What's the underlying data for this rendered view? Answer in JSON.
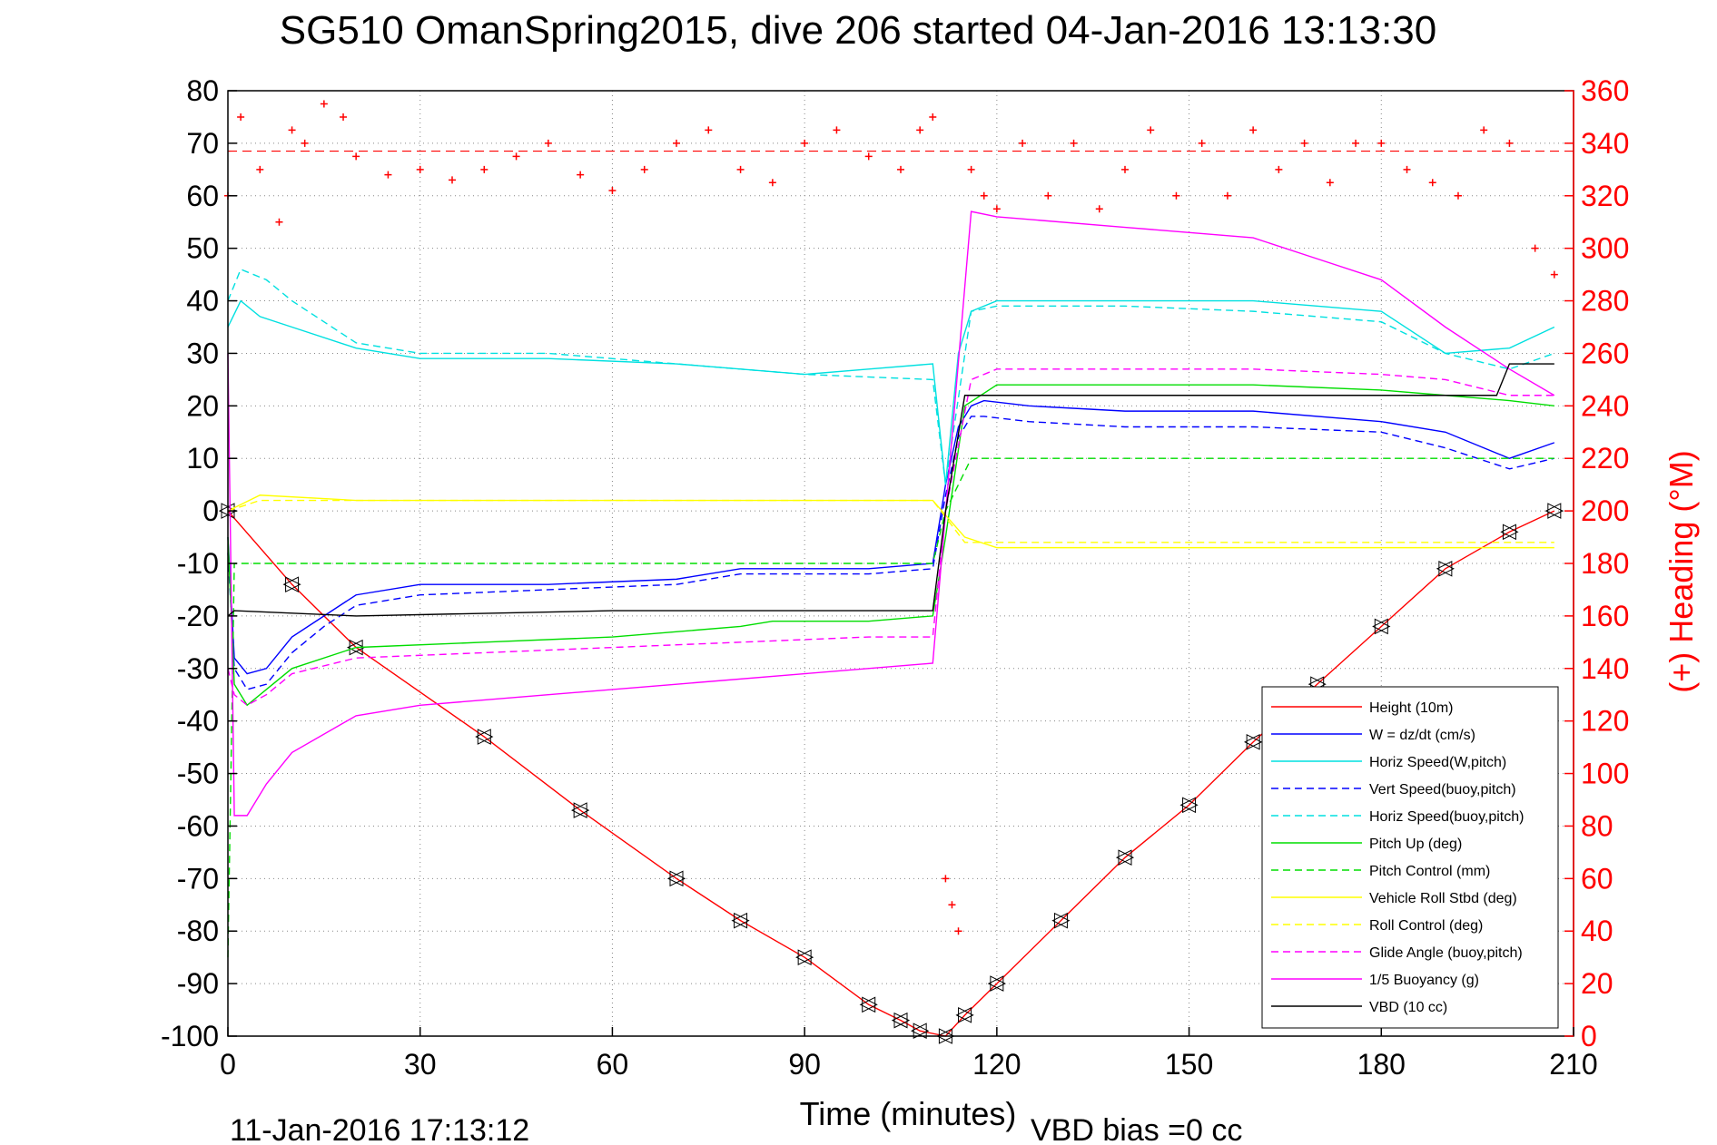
{
  "chart_data": {
    "type": "line",
    "title": "SG510 OmanSpring2015, dive 206 started 04-Jan-2016 13:13:30",
    "xlabel": "Time (minutes)",
    "ylabel_right": "(+) Heading (°M)",
    "footer_left": "11-Jan-2016 17:13:12",
    "footer_right": "VBD bias =0 cc",
    "xlim": [
      0,
      210
    ],
    "ylim": [
      -100,
      80
    ],
    "y2lim": [
      0,
      360
    ],
    "x_ticks": [
      0,
      30,
      60,
      90,
      120,
      150,
      180,
      210
    ],
    "x_tick_labels": [
      "0",
      "30",
      "60",
      "90",
      "120",
      "150",
      "180",
      "210"
    ],
    "y_ticks": [
      80,
      70,
      60,
      50,
      40,
      30,
      20,
      10,
      0,
      -10,
      -20,
      -30,
      -40,
      -50,
      -60,
      -70,
      -80,
      -90,
      -100
    ],
    "y_tick_labels": [
      "80",
      "70",
      "60",
      "50",
      "40",
      "30",
      "20",
      "10",
      "0",
      "-10",
      "-20",
      "-30",
      "-40",
      "-50",
      "-60",
      "-70",
      "-80",
      "-90",
      "-100"
    ],
    "y2_ticks": [
      360,
      340,
      320,
      300,
      280,
      260,
      240,
      220,
      200,
      180,
      160,
      140,
      120,
      100,
      80,
      60,
      40,
      20,
      0
    ],
    "y2_tick_labels": [
      "360",
      "340",
      "320",
      "300",
      "280",
      "260",
      "240",
      "220",
      "200",
      "180",
      "160",
      "140",
      "120",
      "100",
      "80",
      "60",
      "40",
      "20",
      "0"
    ],
    "grid": true,
    "legend_position": "bottom-right",
    "heading_mean_line": 337,
    "series": [
      {
        "name": "Height (10m)",
        "color": "#ff0000",
        "style": "solid",
        "x": [
          0,
          10,
          20,
          40,
          55,
          70,
          80,
          90,
          100,
          105,
          108,
          112,
          115,
          120,
          130,
          140,
          150,
          160,
          170,
          180,
          190,
          200,
          207
        ],
        "y": [
          0,
          -14,
          -26,
          -43,
          -57,
          -70,
          -78,
          -85,
          -94,
          -97,
          -99,
          -100,
          -96,
          -90,
          -78,
          -66,
          -56,
          -44,
          -33,
          -22,
          -11,
          -4,
          0
        ]
      },
      {
        "name": "W = dz/dt (cm/s)",
        "color": "#0000ff",
        "style": "solid",
        "x": [
          0,
          1,
          3,
          6,
          10,
          15,
          20,
          30,
          50,
          70,
          80,
          90,
          100,
          110,
          112,
          114,
          116,
          118,
          125,
          140,
          160,
          180,
          190,
          200,
          207
        ],
        "y": [
          -5,
          -28,
          -31,
          -30,
          -24,
          -20,
          -16,
          -14,
          -14,
          -13,
          -11,
          -11,
          -11,
          -10,
          5,
          16,
          20,
          21,
          20,
          19,
          19,
          17,
          15,
          10,
          13
        ]
      },
      {
        "name": "Horiz Speed(W,pitch)",
        "color": "#00e0e0",
        "style": "solid",
        "x": [
          0,
          2,
          5,
          10,
          20,
          30,
          50,
          70,
          90,
          100,
          110,
          112,
          114,
          116,
          120,
          140,
          160,
          180,
          190,
          200,
          207
        ],
        "y": [
          35,
          40,
          37,
          35,
          31,
          29,
          29,
          28,
          26,
          27,
          28,
          5,
          30,
          38,
          40,
          40,
          40,
          38,
          30,
          31,
          35
        ]
      },
      {
        "name": "Vert Speed(buoy,pitch)",
        "color": "#0000ff",
        "style": "dashed",
        "x": [
          0,
          1,
          3,
          6,
          10,
          15,
          20,
          30,
          50,
          70,
          80,
          90,
          100,
          110,
          112,
          114,
          116,
          118,
          125,
          140,
          160,
          180,
          190,
          200,
          207
        ],
        "y": [
          -8,
          -30,
          -34,
          -33,
          -27,
          -22,
          -18,
          -16,
          -15,
          -14,
          -12,
          -12,
          -12,
          -11,
          3,
          14,
          18,
          18,
          17,
          16,
          16,
          15,
          12,
          8,
          10
        ]
      },
      {
        "name": "Horiz Speed(buoy,pitch)",
        "color": "#00e0e0",
        "style": "dashed",
        "x": [
          0,
          2,
          6,
          10,
          20,
          30,
          50,
          70,
          90,
          110,
          112,
          116,
          120,
          140,
          160,
          180,
          190,
          200,
          207
        ],
        "y": [
          40,
          46,
          44,
          40,
          32,
          30,
          30,
          28,
          26,
          25,
          5,
          38,
          39,
          39,
          38,
          36,
          30,
          27,
          30
        ]
      },
      {
        "name": "Pitch Up (deg)",
        "color": "#00dd00",
        "style": "solid",
        "x": [
          0,
          1,
          3,
          6,
          10,
          20,
          40,
          60,
          80,
          85,
          100,
          110,
          112,
          115,
          120,
          140,
          160,
          180,
          190,
          200,
          207
        ],
        "y": [
          -5,
          -33,
          -37,
          -34,
          -30,
          -26,
          -25,
          -24,
          -22,
          -21,
          -21,
          -20,
          -5,
          20,
          24,
          24,
          24,
          23,
          22,
          21,
          20
        ]
      },
      {
        "name": "Pitch Control (mm)",
        "color": "#00dd00",
        "style": "dashed",
        "x": [
          0,
          1,
          5,
          20,
          60,
          110,
          112,
          116,
          130,
          207
        ],
        "y": [
          -85,
          -10,
          -10,
          -10,
          -10,
          -10,
          0,
          10,
          10,
          10
        ]
      },
      {
        "name": "Vehicle Roll Stbd (deg)",
        "color": "#ffff00",
        "style": "solid",
        "x": [
          0,
          5,
          20,
          40,
          60,
          80,
          100,
          110,
          115,
          120,
          140,
          160,
          180,
          200,
          207
        ],
        "y": [
          0,
          3,
          2,
          2,
          2,
          2,
          2,
          2,
          -5,
          -7,
          -7,
          -7,
          -7,
          -7,
          -7
        ]
      },
      {
        "name": "Roll Control (deg)",
        "color": "#ffff00",
        "style": "dashed",
        "x": [
          0,
          5,
          20,
          40,
          60,
          80,
          100,
          110,
          115,
          120,
          140,
          160,
          180,
          200,
          207
        ],
        "y": [
          0,
          2,
          2,
          2,
          2,
          2,
          2,
          2,
          -6,
          -6,
          -6,
          -6,
          -6,
          -6,
          -6
        ]
      },
      {
        "name": "Glide Angle (buoy,pitch)",
        "color": "#ff00ff",
        "style": "dashed",
        "x": [
          0,
          1,
          3,
          6,
          10,
          20,
          40,
          60,
          80,
          100,
          110,
          112,
          116,
          120,
          140,
          160,
          180,
          190,
          200,
          207
        ],
        "y": [
          -30,
          -35,
          -37,
          -35,
          -31,
          -28,
          -27,
          -26,
          -25,
          -24,
          -24,
          0,
          25,
          27,
          27,
          27,
          26,
          25,
          22,
          22
        ]
      },
      {
        "name": "1/5 Buoyancy (g)",
        "color": "#ff00ff",
        "style": "solid",
        "x": [
          0,
          1,
          3,
          6,
          10,
          20,
          30,
          50,
          70,
          90,
          110,
          116,
          120,
          140,
          160,
          170,
          180,
          190,
          200,
          207
        ],
        "y": [
          30,
          -58,
          -58,
          -52,
          -46,
          -39,
          -37,
          -35,
          -33,
          -31,
          -29,
          57,
          56,
          54,
          52,
          48,
          44,
          35,
          27,
          22
        ]
      },
      {
        "name": "VBD (10 cc)",
        "color": "#000000",
        "style": "solid",
        "x": [
          0,
          1,
          20,
          60,
          100,
          110,
          112,
          115,
          120,
          160,
          180,
          198,
          200,
          207
        ],
        "y": [
          -20,
          -19,
          -20,
          -19,
          -19,
          -19,
          0,
          22,
          22,
          22,
          22,
          22,
          28,
          28
        ]
      },
      {
        "name": "Heading",
        "color": "#ff0000",
        "style": "markers",
        "axis": "right",
        "x": [
          0,
          2,
          5,
          8,
          10,
          12,
          15,
          18,
          20,
          25,
          30,
          35,
          40,
          45,
          50,
          55,
          60,
          65,
          70,
          75,
          80,
          85,
          90,
          95,
          100,
          105,
          108,
          110,
          112,
          113,
          114,
          116,
          118,
          120,
          124,
          128,
          132,
          136,
          140,
          144,
          148,
          152,
          156,
          160,
          164,
          168,
          172,
          176,
          180,
          184,
          188,
          192,
          196,
          200,
          204,
          207
        ],
        "y": [
          320,
          350,
          330,
          310,
          345,
          340,
          355,
          350,
          335,
          328,
          330,
          326,
          330,
          335,
          340,
          328,
          322,
          330,
          340,
          345,
          330,
          325,
          340,
          345,
          335,
          330,
          345,
          350,
          60,
          50,
          40,
          330,
          320,
          315,
          340,
          320,
          340,
          315,
          330,
          345,
          320,
          340,
          320,
          345,
          330,
          340,
          325,
          340,
          340,
          330,
          325,
          320,
          345,
          340,
          300,
          290
        ]
      }
    ]
  }
}
